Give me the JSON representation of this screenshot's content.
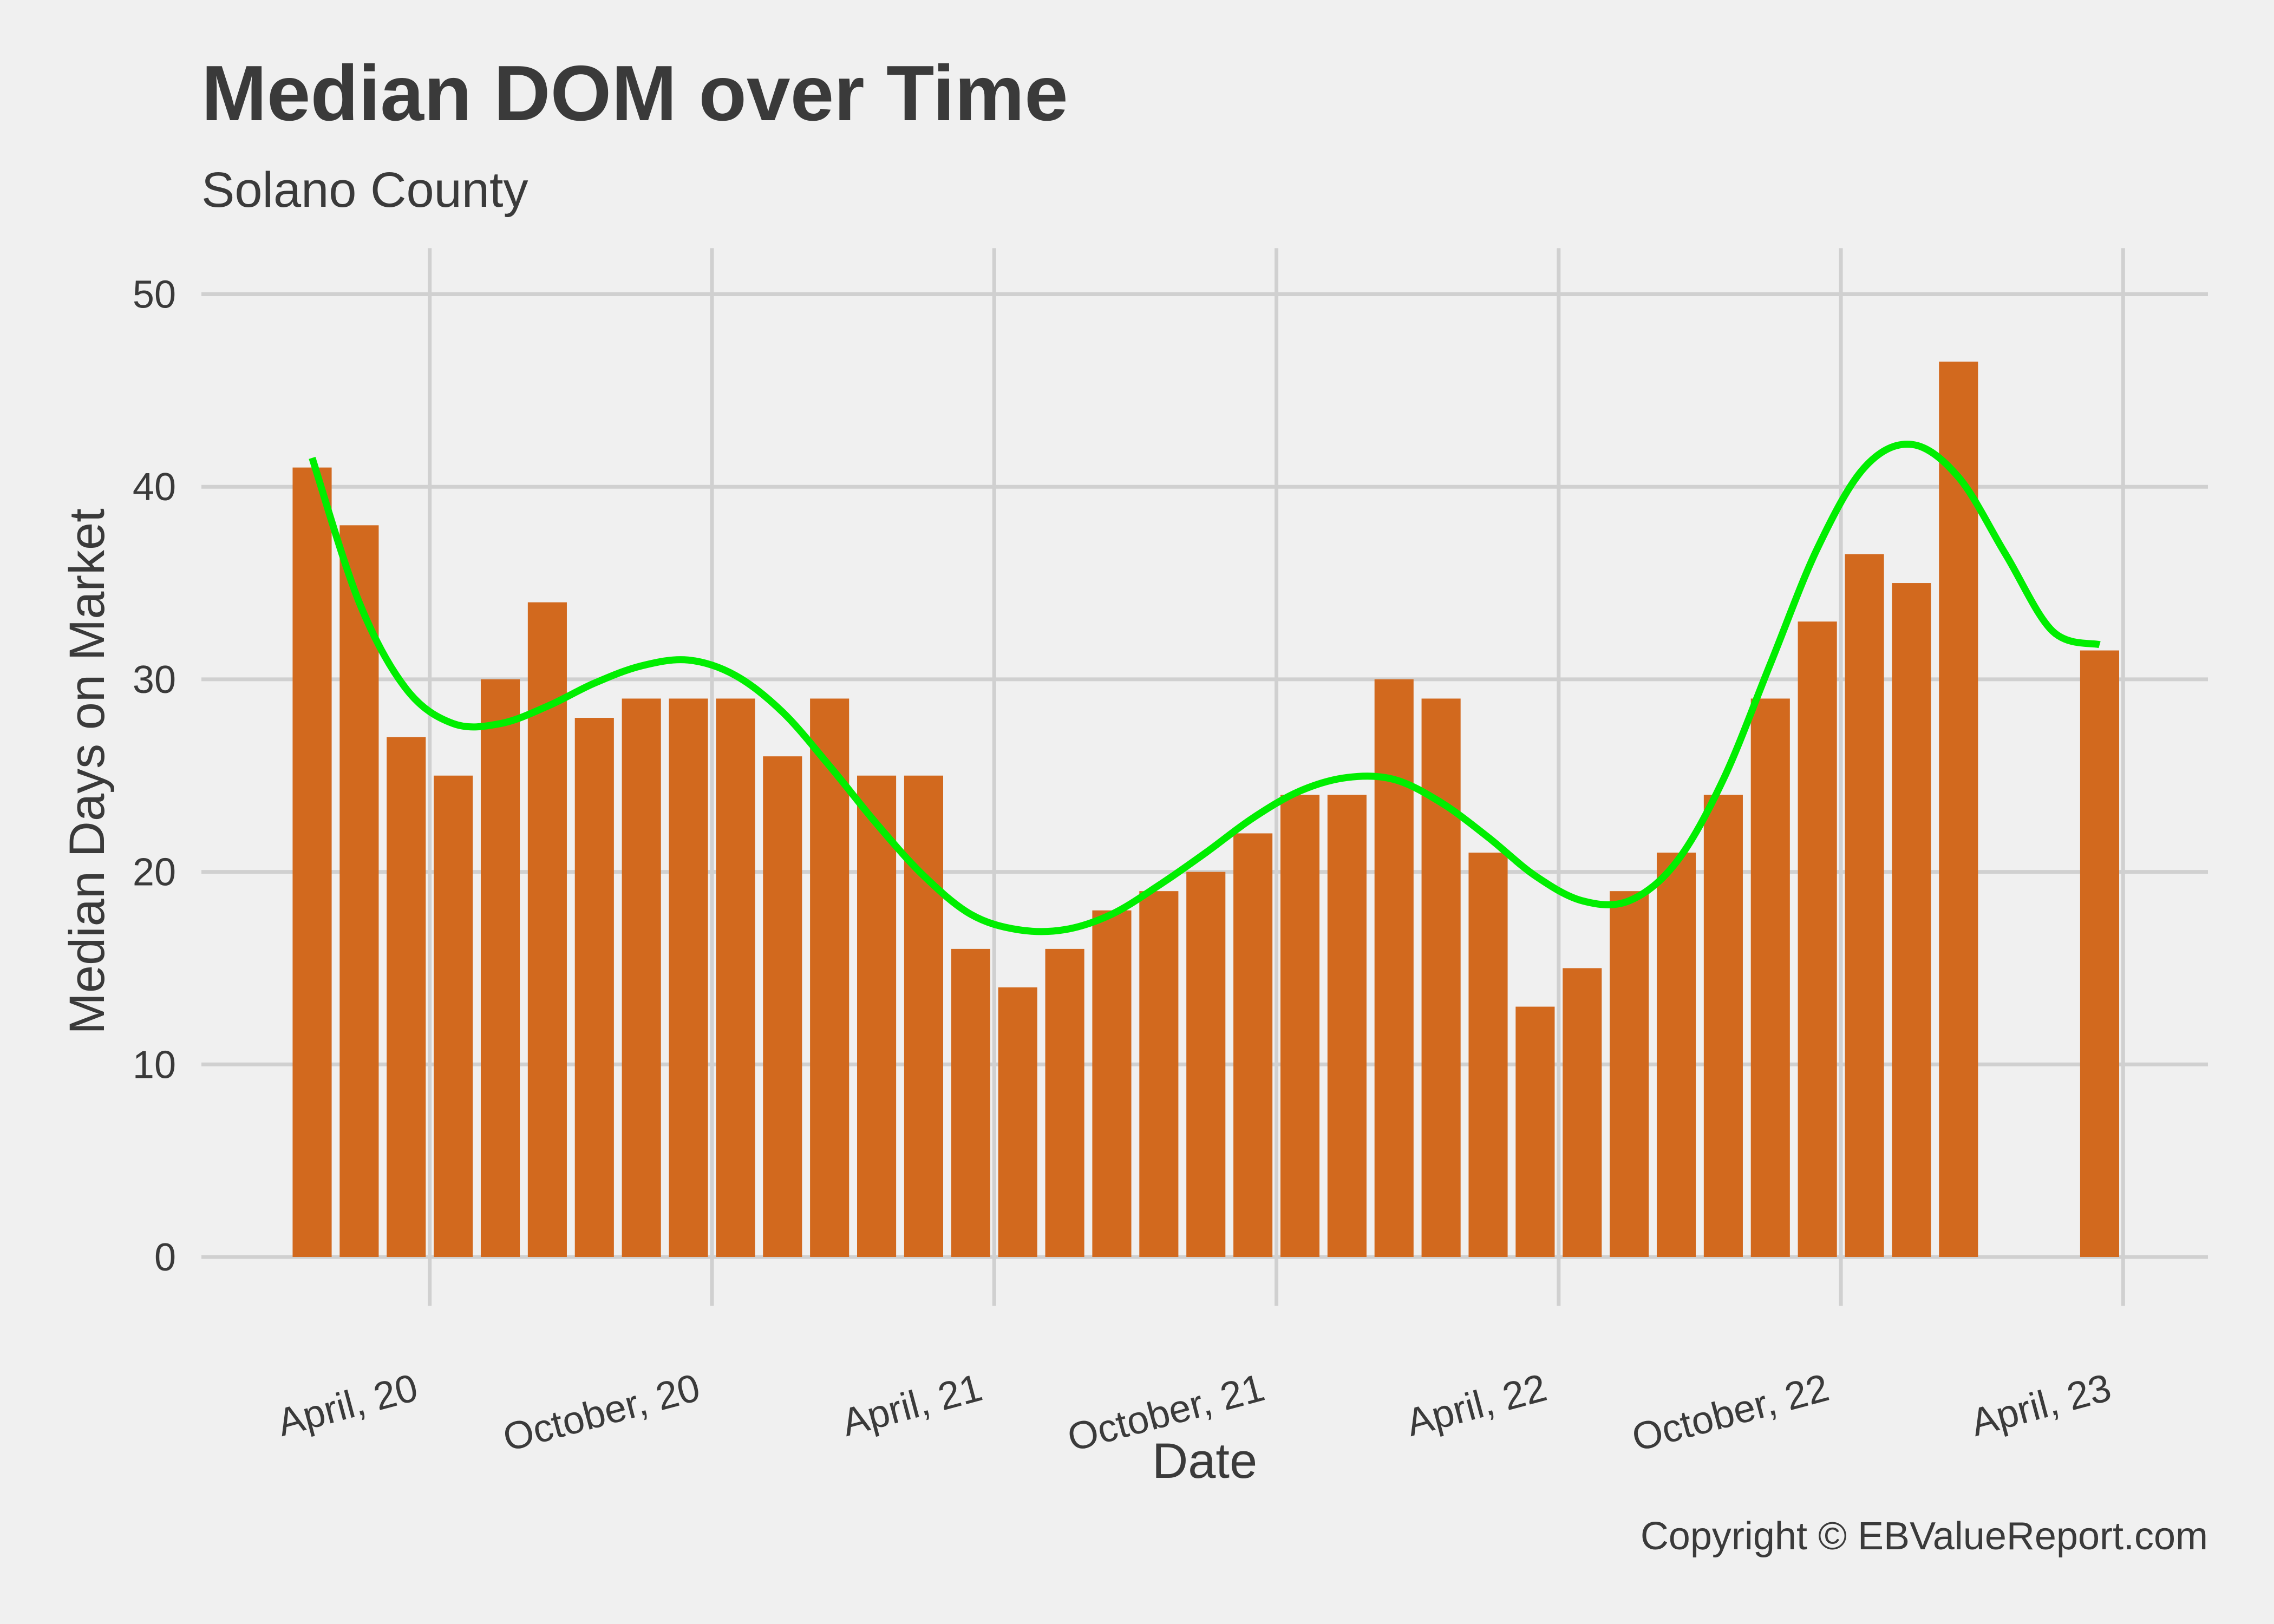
{
  "title": "Median DOM over Time",
  "subtitle": "Solano County",
  "caption": "Copyright  © EBValueReport.com",
  "colors": {
    "background": "#f0f0f0",
    "bar": "#d2691e",
    "smooth_line": "#00ee00",
    "grid": "#d0d0d0",
    "text": "#3a3a3a"
  },
  "chart_data": {
    "type": "bar",
    "xlabel": "Date",
    "ylabel": "Median Days on Market",
    "ylim": [
      0,
      52
    ],
    "yticks": [
      0,
      10,
      20,
      30,
      40,
      50
    ],
    "grid": true,
    "x_ticks": [
      {
        "date": "2020-04-01",
        "label": "April, 20"
      },
      {
        "date": "2020-10-01",
        "label": "October, 20"
      },
      {
        "date": "2021-04-01",
        "label": "April, 21"
      },
      {
        "date": "2021-10-01",
        "label": "October, 21"
      },
      {
        "date": "2022-04-01",
        "label": "April, 22"
      },
      {
        "date": "2022-10-01",
        "label": "October, 22"
      },
      {
        "date": "2023-04-01",
        "label": "April, 23"
      }
    ],
    "bars": [
      {
        "date": "2020-01",
        "value": 41
      },
      {
        "date": "2020-02",
        "value": 38
      },
      {
        "date": "2020-03",
        "value": 27
      },
      {
        "date": "2020-04",
        "value": 25
      },
      {
        "date": "2020-05",
        "value": 30
      },
      {
        "date": "2020-06",
        "value": 34
      },
      {
        "date": "2020-07",
        "value": 28
      },
      {
        "date": "2020-08",
        "value": 29
      },
      {
        "date": "2020-09",
        "value": 29
      },
      {
        "date": "2020-10",
        "value": 29
      },
      {
        "date": "2020-11",
        "value": 26
      },
      {
        "date": "2020-12",
        "value": 29
      },
      {
        "date": "2021-01",
        "value": 25
      },
      {
        "date": "2021-02",
        "value": 25
      },
      {
        "date": "2021-03",
        "value": 16
      },
      {
        "date": "2021-04",
        "value": 14
      },
      {
        "date": "2021-05",
        "value": 16
      },
      {
        "date": "2021-06",
        "value": 18
      },
      {
        "date": "2021-07",
        "value": 19
      },
      {
        "date": "2021-08",
        "value": 20
      },
      {
        "date": "2021-09",
        "value": 22
      },
      {
        "date": "2021-10",
        "value": 24
      },
      {
        "date": "2021-11",
        "value": 24
      },
      {
        "date": "2021-12",
        "value": 30
      },
      {
        "date": "2022-01",
        "value": 29
      },
      {
        "date": "2022-02",
        "value": 21
      },
      {
        "date": "2022-03",
        "value": 13
      },
      {
        "date": "2022-04",
        "value": 15
      },
      {
        "date": "2022-05",
        "value": 19
      },
      {
        "date": "2022-06",
        "value": 21
      },
      {
        "date": "2022-07",
        "value": 24
      },
      {
        "date": "2022-08",
        "value": 29
      },
      {
        "date": "2022-09",
        "value": 33
      },
      {
        "date": "2022-10",
        "value": 36.5
      },
      {
        "date": "2022-11",
        "value": 35
      },
      {
        "date": "2022-12",
        "value": 46.5
      },
      {
        "date": "2023-03",
        "value": 31.5
      }
    ],
    "smooth_line": [
      {
        "date": "2020-01",
        "value": 41.5
      },
      {
        "date": "2020-02",
        "value": 34
      },
      {
        "date": "2020-03",
        "value": 29.5
      },
      {
        "date": "2020-04",
        "value": 27.7
      },
      {
        "date": "2020-05",
        "value": 27.7
      },
      {
        "date": "2020-06",
        "value": 28.6
      },
      {
        "date": "2020-07",
        "value": 29.8
      },
      {
        "date": "2020-08",
        "value": 30.7
      },
      {
        "date": "2020-09",
        "value": 31
      },
      {
        "date": "2020-10",
        "value": 30.2
      },
      {
        "date": "2020-11",
        "value": 28.3
      },
      {
        "date": "2020-12",
        "value": 25.5
      },
      {
        "date": "2021-01",
        "value": 22.5
      },
      {
        "date": "2021-02",
        "value": 19.8
      },
      {
        "date": "2021-03",
        "value": 17.8
      },
      {
        "date": "2021-04",
        "value": 17
      },
      {
        "date": "2021-05",
        "value": 17
      },
      {
        "date": "2021-06",
        "value": 17.8
      },
      {
        "date": "2021-07",
        "value": 19.3
      },
      {
        "date": "2021-08",
        "value": 21
      },
      {
        "date": "2021-09",
        "value": 22.8
      },
      {
        "date": "2021-10",
        "value": 24.2
      },
      {
        "date": "2021-11",
        "value": 24.9
      },
      {
        "date": "2021-12",
        "value": 24.8
      },
      {
        "date": "2022-01",
        "value": 23.6
      },
      {
        "date": "2022-02",
        "value": 21.8
      },
      {
        "date": "2022-03",
        "value": 19.8
      },
      {
        "date": "2022-04",
        "value": 18.5
      },
      {
        "date": "2022-05",
        "value": 18.5
      },
      {
        "date": "2022-06",
        "value": 20.5
      },
      {
        "date": "2022-07",
        "value": 24.8
      },
      {
        "date": "2022-08",
        "value": 30.8
      },
      {
        "date": "2022-09",
        "value": 36.8
      },
      {
        "date": "2022-10",
        "value": 41
      },
      {
        "date": "2022-11",
        "value": 42.2
      },
      {
        "date": "2022-12",
        "value": 40.5
      },
      {
        "date": "2023-01",
        "value": 36.5
      },
      {
        "date": "2023-02",
        "value": 32.5
      },
      {
        "date": "2023-03",
        "value": 31.8
      }
    ]
  }
}
